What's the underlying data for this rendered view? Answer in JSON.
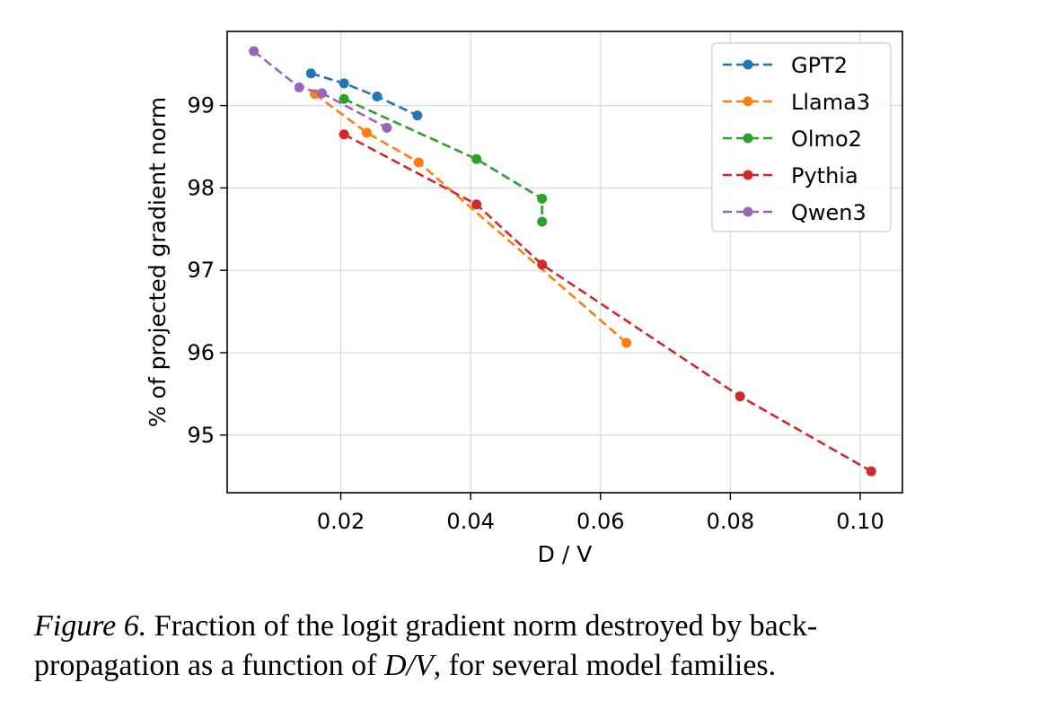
{
  "chart_data": {
    "type": "line",
    "title": "",
    "xlabel": "D / V",
    "ylabel": "% of projected gradient norm",
    "xlim": [
      0.0025,
      0.1065
    ],
    "ylim": [
      94.3,
      99.9
    ],
    "xticks": [
      0.02,
      0.04,
      0.06,
      0.08,
      0.1
    ],
    "xtick_labels": [
      "0.02",
      "0.04",
      "0.06",
      "0.08",
      "0.10"
    ],
    "yticks": [
      95,
      96,
      97,
      98,
      99
    ],
    "ytick_labels": [
      "95",
      "96",
      "97",
      "98",
      "99"
    ],
    "grid": true,
    "legend_position": "top-right",
    "series": [
      {
        "name": "GPT2",
        "color": "#1f77b4",
        "x": [
          0.0154,
          0.0205,
          0.0256,
          0.0318
        ],
        "y": [
          99.39,
          99.27,
          99.11,
          98.88
        ]
      },
      {
        "name": "Llama3",
        "color": "#ff7f0e",
        "x": [
          0.016,
          0.024,
          0.032,
          0.064
        ],
        "y": [
          99.14,
          98.67,
          98.31,
          96.12
        ]
      },
      {
        "name": "Olmo2",
        "color": "#2ca02c",
        "x": [
          0.0205,
          0.0409,
          0.051,
          0.051
        ],
        "y": [
          99.08,
          98.35,
          97.87,
          97.59
        ]
      },
      {
        "name": "Pythia",
        "color": "#d62728",
        "x": [
          0.0205,
          0.0409,
          0.051,
          0.0815,
          0.1017
        ],
        "y": [
          98.65,
          97.8,
          97.07,
          95.47,
          94.56
        ]
      },
      {
        "name": "Qwen3",
        "color": "#9467bd",
        "x": [
          0.0066,
          0.0136,
          0.0171,
          0.0271
        ],
        "y": [
          99.66,
          99.22,
          99.15,
          98.73
        ]
      }
    ]
  },
  "caption": {
    "label": "Figure 6.",
    "text_line1": "Fraction of the logit gradient norm destroyed by back-",
    "text_line2_before": "propagation as a function of",
    "math": "D/V",
    "text_line2_after": ", for several model families."
  }
}
